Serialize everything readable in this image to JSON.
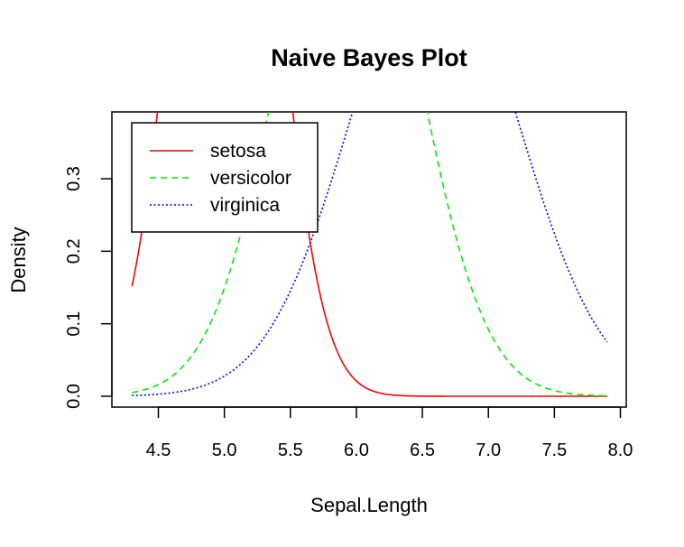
{
  "chart_data": {
    "type": "line",
    "title": "Naive Bayes Plot",
    "xlabel": "Sepal.Length",
    "ylabel": "Density",
    "xlim": [
      4.3,
      7.9
    ],
    "ylim": [
      0,
      0.36
    ],
    "x_ticks": [
      "4.5",
      "5.0",
      "5.5",
      "6.0",
      "6.5",
      "7.0",
      "7.5",
      "8.0"
    ],
    "y_ticks": [
      "0.0",
      "0.1",
      "0.2",
      "0.3"
    ],
    "legend_position": "top-left",
    "grid": false,
    "series": [
      {
        "name": "setosa",
        "color": "#ff0000",
        "line_style": "solid",
        "distribution": "normal",
        "mean": 5.006,
        "sd": 0.352,
        "x_range": [
          4.3,
          7.9
        ]
      },
      {
        "name": "versicolor",
        "color": "#00ee00",
        "line_style": "dashed",
        "distribution": "normal",
        "mean": 5.936,
        "sd": 0.516,
        "x_range": [
          4.3,
          7.9
        ]
      },
      {
        "name": "virginica",
        "color": "#0000ff",
        "line_style": "dotted",
        "distribution": "normal",
        "mean": 6.588,
        "sd": 0.636,
        "x_range": [
          4.3,
          7.9
        ]
      }
    ]
  }
}
